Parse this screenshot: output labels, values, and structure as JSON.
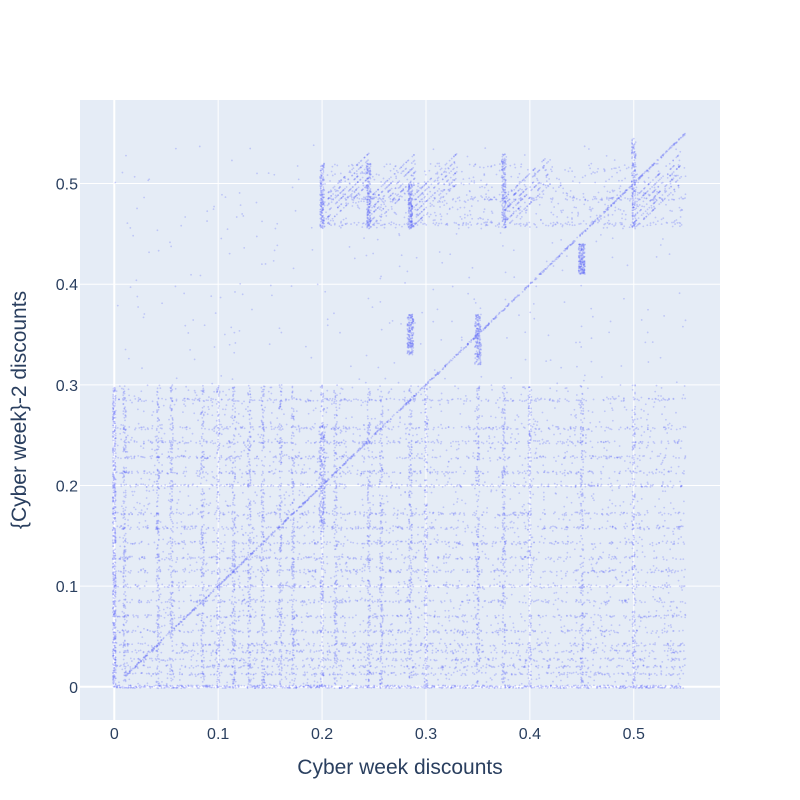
{
  "chart_data": {
    "type": "scatter",
    "title": "",
    "xlabel": "Cyber week discounts",
    "ylabel": "{Cyber week}-2 discounts",
    "xlim": [
      -0.033,
      0.583
    ],
    "ylim": [
      -0.033,
      0.583
    ],
    "x_ticks": [
      0,
      0.1,
      0.2,
      0.3,
      0.4,
      0.5
    ],
    "x_tick_labels": [
      "0",
      "0.1",
      "0.2",
      "0.3",
      "0.4",
      "0.5"
    ],
    "y_ticks": [
      0,
      0.1,
      0.2,
      0.3,
      0.4,
      0.5
    ],
    "y_tick_labels": [
      "0",
      "0.1",
      "0.2",
      "0.3",
      "0.4",
      "0.5"
    ],
    "grid": true,
    "marker_color": "#636efa",
    "marker_opacity": 0.3,
    "plot_bgcolor": "#e5ecf6",
    "description_of_density": {
      "diagonal": {
        "x_start": 0.01,
        "x_end": 0.55
      },
      "horizontal_bands_y": [
        0.0,
        0.013,
        0.02,
        0.027,
        0.035,
        0.042,
        0.055,
        0.07,
        0.085,
        0.1,
        0.115,
        0.128,
        0.143,
        0.158,
        0.172,
        0.2,
        0.213,
        0.228,
        0.243,
        0.257,
        0.285,
        0.46,
        0.485
      ],
      "horizontal_bands_x_range": [
        0.0,
        0.55
      ],
      "vertical_bands_x": [
        0.0,
        0.01,
        0.042,
        0.055,
        0.085,
        0.1,
        0.115,
        0.13,
        0.143,
        0.16,
        0.172,
        0.2,
        0.213,
        0.245,
        0.257,
        0.285,
        0.3,
        0.35,
        0.375,
        0.4,
        0.45,
        0.5
      ],
      "vertical_bands_y_range": [
        0.0,
        0.3
      ],
      "upper_block_x": [
        0.2,
        0.55
      ],
      "upper_block_y": [
        0.455,
        0.52
      ],
      "upper_clusters": [
        {
          "x": 0.2,
          "y": [
            0.455,
            0.52
          ]
        },
        {
          "x": 0.245,
          "y": [
            0.455,
            0.52
          ]
        },
        {
          "x": 0.285,
          "y": [
            0.455,
            0.5
          ]
        },
        {
          "x": 0.375,
          "y": [
            0.455,
            0.53
          ]
        },
        {
          "x": 0.5,
          "y": [
            0.455,
            0.545
          ]
        }
      ],
      "mid_clusters": [
        {
          "x": 0.35,
          "y": [
            0.32,
            0.37
          ]
        },
        {
          "x": 0.285,
          "y": [
            0.33,
            0.37
          ]
        },
        {
          "x": 0.2,
          "y": [
            0.16,
            0.26
          ]
        },
        {
          "x": 0.45,
          "y": [
            0.41,
            0.44
          ]
        }
      ]
    }
  }
}
